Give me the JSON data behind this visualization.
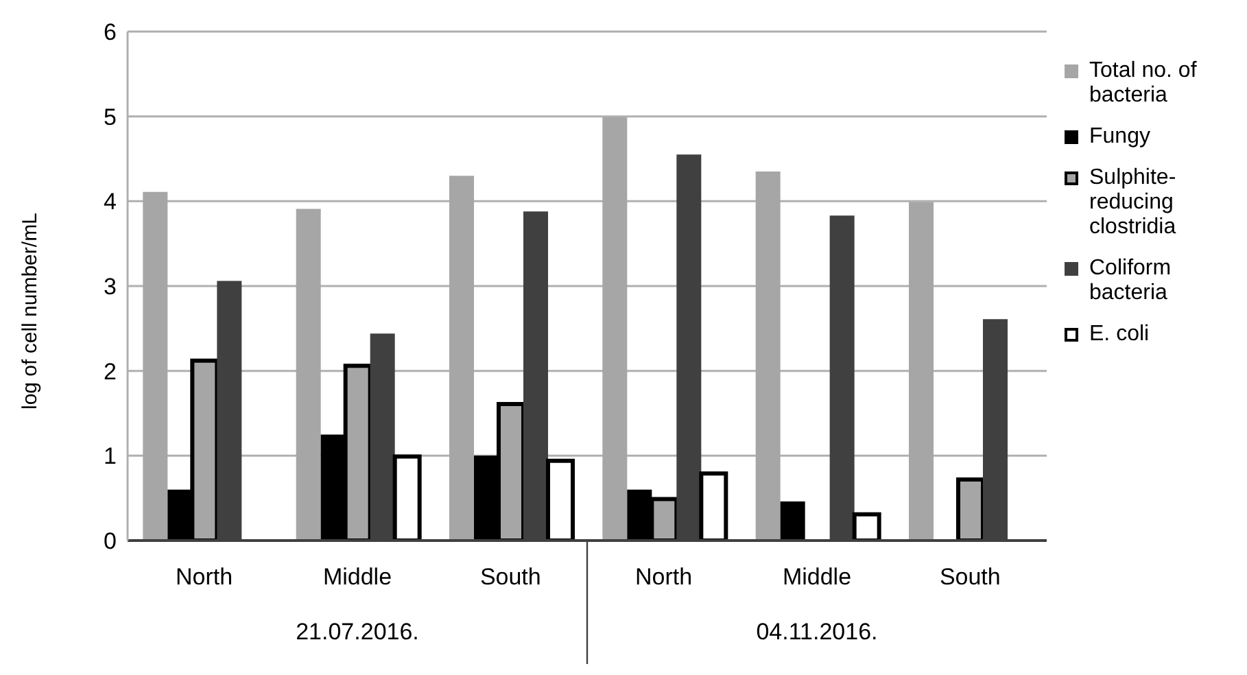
{
  "chart_data": {
    "type": "bar",
    "ylabel": "log of cell number/mL",
    "categories": [
      "North",
      "Middle",
      "South",
      "North",
      "Middle",
      "South"
    ],
    "series": [
      {
        "name": "Total no. of bacteria",
        "color": "#a6a6a6",
        "values": [
          4.11,
          3.91,
          4.3,
          4.99,
          4.35,
          3.99
        ]
      },
      {
        "name": "Fungy",
        "color": "#000000",
        "values": [
          0.6,
          1.25,
          1.0,
          0.6,
          0.46,
          null
        ]
      },
      {
        "name": "Sulphite-reducing clostridia",
        "color": "#a6a6a6",
        "values": [
          2.12,
          2.06,
          1.61,
          0.49,
          null,
          0.72
        ]
      },
      {
        "name": "Coliform bacteria",
        "color": "#404040",
        "values": [
          3.06,
          2.44,
          3.88,
          4.55,
          3.83,
          2.61
        ]
      },
      {
        "name": "E. coli",
        "color": "#ffffff",
        "values": [
          null,
          0.99,
          0.94,
          0.79,
          0.31,
          null
        ]
      }
    ],
    "annotations": [
      "21.07.2016.",
      "04.11.2016."
    ],
    "ylim": [
      0,
      6
    ],
    "yticks": [
      0,
      1,
      2,
      3,
      4,
      5,
      6
    ],
    "grid": "y",
    "legend": "right"
  }
}
